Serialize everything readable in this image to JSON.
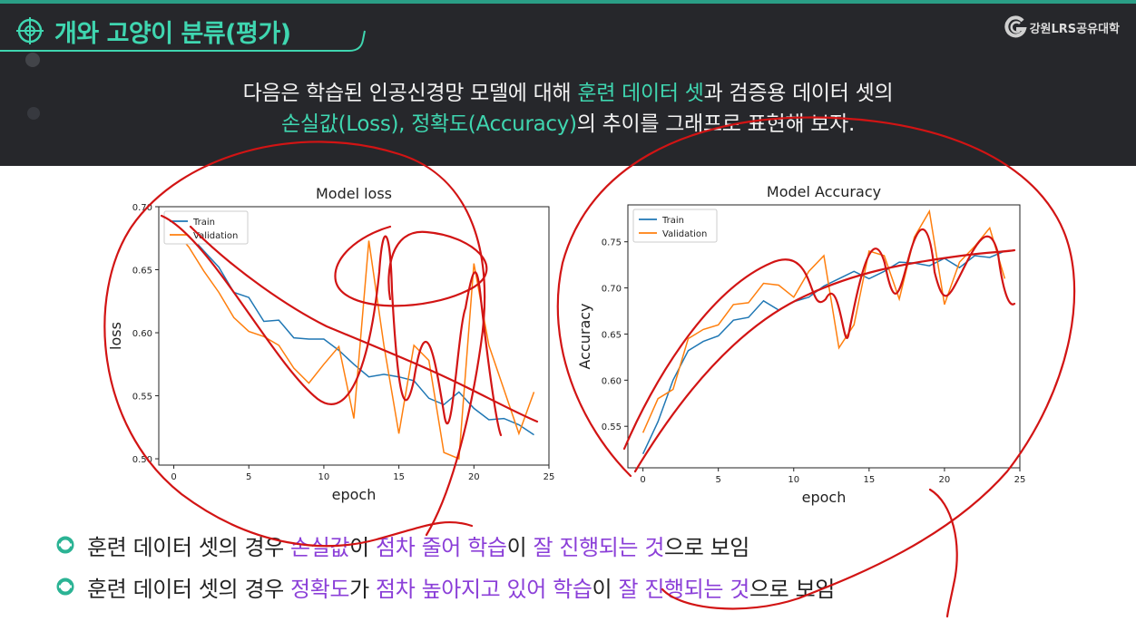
{
  "header": {
    "title": "개와 고양이 분류(평가)",
    "logo_text": "강원LRS공유대학",
    "intro": {
      "line1": [
        "다음은 학습된 인공신경망 모델에 대해 ",
        "훈련 데이터 셋",
        "과 검증용 데이터 셋의"
      ],
      "line2": [
        "손실값(Loss), 정확도(Accuracy)",
        "의 추이를 그래프로 표현해 보자."
      ]
    }
  },
  "colors": {
    "accent": "#3fd6b0",
    "purple": "#8b3fd8",
    "train": "#1f77b4",
    "validation": "#ff7f0e",
    "annotation": "#d21414",
    "header_bg": "#26272b"
  },
  "chart_data": [
    {
      "type": "line",
      "title": "Model loss",
      "xlabel": "epoch",
      "ylabel": "loss",
      "xlim": [
        -1,
        25
      ],
      "ylim": [
        0.495,
        0.7
      ],
      "xticks": [
        0,
        5,
        10,
        15,
        20,
        25
      ],
      "yticks": [
        0.5,
        0.55,
        0.6,
        0.65,
        0.7
      ],
      "ytick_labels": [
        "0.50",
        "0.55",
        "0.60",
        "0.65",
        "0.70"
      ],
      "legend": "upper-left",
      "grid": false,
      "series": [
        {
          "name": "Train",
          "x": [
            0,
            1,
            2,
            3,
            4,
            5,
            6,
            7,
            8,
            9,
            10,
            11,
            12,
            13,
            14,
            15,
            16,
            17,
            18,
            19,
            20,
            21,
            22,
            23,
            24
          ],
          "values": [
            0.692,
            0.678,
            0.665,
            0.652,
            0.632,
            0.628,
            0.609,
            0.61,
            0.596,
            0.595,
            0.595,
            0.586,
            0.575,
            0.565,
            0.567,
            0.565,
            0.562,
            0.548,
            0.543,
            0.553,
            0.54,
            0.531,
            0.532,
            0.527,
            0.519
          ]
        },
        {
          "name": "Validation",
          "x": [
            0,
            1,
            2,
            3,
            4,
            5,
            6,
            7,
            8,
            9,
            10,
            11,
            12,
            13,
            14,
            15,
            16,
            17,
            18,
            19,
            20,
            21,
            22,
            23,
            24
          ],
          "values": [
            0.682,
            0.668,
            0.649,
            0.632,
            0.612,
            0.601,
            0.597,
            0.59,
            0.572,
            0.56,
            0.575,
            0.589,
            0.532,
            0.673,
            0.59,
            0.52,
            0.59,
            0.578,
            0.505,
            0.5,
            0.655,
            0.59,
            0.555,
            0.52,
            0.553
          ]
        }
      ]
    },
    {
      "type": "line",
      "title": "Model Accuracy",
      "xlabel": "epoch",
      "ylabel": "Accuracy",
      "xlim": [
        -1,
        25
      ],
      "ylim": [
        0.505,
        0.79
      ],
      "xticks": [
        0,
        5,
        10,
        15,
        20,
        25
      ],
      "yticks": [
        0.55,
        0.6,
        0.65,
        0.7,
        0.75
      ],
      "ytick_labels": [
        "0.55",
        "0.60",
        "0.65",
        "0.70",
        "0.75"
      ],
      "legend": "upper-left",
      "grid": false,
      "series": [
        {
          "name": "Train",
          "x": [
            0,
            1,
            2,
            3,
            4,
            5,
            6,
            7,
            8,
            9,
            10,
            11,
            12,
            13,
            14,
            15,
            16,
            17,
            18,
            19,
            20,
            21,
            22,
            23,
            24
          ],
          "values": [
            0.52,
            0.555,
            0.6,
            0.632,
            0.642,
            0.648,
            0.665,
            0.668,
            0.686,
            0.676,
            0.685,
            0.69,
            0.702,
            0.71,
            0.718,
            0.71,
            0.718,
            0.728,
            0.727,
            0.724,
            0.732,
            0.722,
            0.735,
            0.733,
            0.74
          ]
        },
        {
          "name": "Validation",
          "x": [
            0,
            1,
            2,
            3,
            4,
            5,
            6,
            7,
            8,
            9,
            10,
            11,
            12,
            13,
            14,
            15,
            16,
            17,
            18,
            19,
            20,
            21,
            22,
            23,
            24
          ],
          "values": [
            0.543,
            0.58,
            0.59,
            0.645,
            0.655,
            0.66,
            0.682,
            0.684,
            0.705,
            0.703,
            0.69,
            0.718,
            0.735,
            0.635,
            0.66,
            0.74,
            0.735,
            0.688,
            0.755,
            0.783,
            0.682,
            0.728,
            0.745,
            0.765,
            0.71
          ]
        }
      ]
    }
  ],
  "bullets": [
    {
      "segments": [
        {
          "text": "훈련 데이터 셋의 경우 ",
          "color": "#222222"
        },
        {
          "text": "손실값",
          "color": "#8b3fd8"
        },
        {
          "text": "이 ",
          "color": "#222222"
        },
        {
          "text": "점차 줄어 학습",
          "color": "#8b3fd8"
        },
        {
          "text": "이 ",
          "color": "#222222"
        },
        {
          "text": "잘 진행되는 것",
          "color": "#8b3fd8"
        },
        {
          "text": "으로 보임",
          "color": "#222222"
        }
      ]
    },
    {
      "segments": [
        {
          "text": "훈련 데이터 셋의 경우 ",
          "color": "#222222"
        },
        {
          "text": "정확도",
          "color": "#8b3fd8"
        },
        {
          "text": "가 ",
          "color": "#222222"
        },
        {
          "text": "점차 높아지고 있어 학습",
          "color": "#8b3fd8"
        },
        {
          "text": "이 ",
          "color": "#222222"
        },
        {
          "text": "잘 진행되는 것",
          "color": "#8b3fd8"
        },
        {
          "text": "으로 보임",
          "color": "#222222"
        }
      ]
    }
  ]
}
